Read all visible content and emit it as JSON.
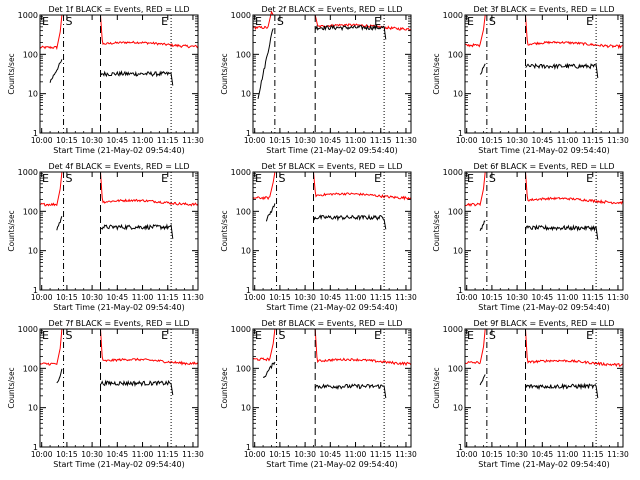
{
  "layout": "3x3 grid",
  "shared": {
    "xlabel": "Start Time (21-May-02 09:54:40)",
    "ylabel": "Counts/sec",
    "xtick_labels": [
      "10:00",
      "10:15",
      "10:30",
      "10:45",
      "11:00",
      "11:15",
      "11:30"
    ],
    "ytick_labels": [
      "1",
      "10",
      "100",
      "1000"
    ],
    "marker_labels": [
      "E",
      "S",
      "E"
    ],
    "colors": {
      "events": "#000000",
      "lld": "#ff0000",
      "axes": "#000000",
      "background": "#ffffff"
    },
    "series_names": [
      "BLACK = Events",
      "RED = LLD"
    ]
  },
  "chart_data": [
    {
      "type": "line",
      "title": "Det 1f BLACK = Events, RED = LLD",
      "y_scale": "log",
      "ylim": [
        1,
        1000
      ],
      "xlim": [
        "09:59",
        "11:33"
      ],
      "markers": {
        "E_start": "10:13",
        "S": "10:13",
        "gap_end": "10:35",
        "E_end": "11:17"
      },
      "series": [
        {
          "name": "Events",
          "color": "#000000",
          "pre": {
            "start": "10:05",
            "end": "10:12",
            "from": 20,
            "to": 70
          },
          "post": {
            "start": "10:35",
            "end": "11:18",
            "level": 32
          }
        },
        {
          "name": "LLD",
          "color": "#ff0000",
          "pre": {
            "start": "09:59",
            "end": "10:12",
            "level": 150
          },
          "post": {
            "start": "10:35",
            "end": "11:33",
            "level": 180
          }
        }
      ]
    },
    {
      "type": "line",
      "title": "Det 2f BLACK = Events, RED = LLD",
      "y_scale": "log",
      "ylim": [
        1,
        1000
      ],
      "xlim": [
        "09:59",
        "11:33"
      ],
      "markers": {
        "E_start": "10:12",
        "S": "10:12",
        "gap_end": "10:36",
        "E_end": "11:17"
      },
      "series": [
        {
          "name": "Events",
          "color": "#000000",
          "pre": {
            "start": "10:02",
            "end": "10:11",
            "from": 8,
            "to": 480
          },
          "post": {
            "start": "10:36",
            "end": "11:18",
            "level": 480
          }
        },
        {
          "name": "LLD",
          "color": "#ff0000",
          "pre": {
            "start": "09:59",
            "end": "10:11",
            "level": 480
          },
          "post": {
            "start": "10:36",
            "end": "11:33",
            "level": 500
          }
        }
      ]
    },
    {
      "type": "line",
      "title": "Det 3f BLACK = Events, RED = LLD",
      "y_scale": "log",
      "ylim": [
        1,
        1000
      ],
      "xlim": [
        "09:59",
        "11:33"
      ],
      "markers": {
        "E_start": "10:12",
        "S": "10:12",
        "gap_end": "10:35",
        "E_end": "11:17"
      },
      "series": [
        {
          "name": "Events",
          "color": "#000000",
          "pre": {
            "start": "10:08",
            "end": "10:11",
            "from": 30,
            "to": 55
          },
          "post": {
            "start": "10:35",
            "end": "11:18",
            "level": 50
          }
        },
        {
          "name": "LLD",
          "color": "#ff0000",
          "pre": {
            "start": "09:59",
            "end": "10:11",
            "level": 170
          },
          "post": {
            "start": "10:35",
            "end": "11:33",
            "level": 180
          }
        }
      ]
    },
    {
      "type": "line",
      "title": "Det 4f BLACK = Events, RED = LLD",
      "y_scale": "log",
      "ylim": [
        1,
        1000
      ],
      "xlim": [
        "09:59",
        "11:33"
      ],
      "markers": {
        "E_start": "10:13",
        "S": "10:13",
        "gap_end": "10:35",
        "E_end": "11:17"
      },
      "series": [
        {
          "name": "Events",
          "color": "#000000",
          "pre": {
            "start": "10:09",
            "end": "10:12",
            "from": 35,
            "to": 70
          },
          "post": {
            "start": "10:35",
            "end": "11:18",
            "level": 40
          }
        },
        {
          "name": "LLD",
          "color": "#ff0000",
          "pre": {
            "start": "09:59",
            "end": "10:12",
            "level": 150
          },
          "post": {
            "start": "10:35",
            "end": "11:33",
            "level": 170
          }
        }
      ]
    },
    {
      "type": "line",
      "title": "Det 5f BLACK = Events, RED = LLD",
      "y_scale": "log",
      "ylim": [
        1,
        1000
      ],
      "xlim": [
        "09:59",
        "11:33"
      ],
      "markers": {
        "E_start": "10:13",
        "S": "10:13",
        "gap_end": "10:35",
        "E_end": "11:17"
      },
      "series": [
        {
          "name": "Events",
          "color": "#000000",
          "pre": {
            "start": "10:07",
            "end": "10:12",
            "from": 60,
            "to": 150
          },
          "post": {
            "start": "10:35",
            "end": "11:18",
            "level": 70
          }
        },
        {
          "name": "LLD",
          "color": "#ff0000",
          "pre": {
            "start": "09:59",
            "end": "10:12",
            "level": 220
          },
          "post": {
            "start": "10:35",
            "end": "11:33",
            "level": 250
          }
        }
      ]
    },
    {
      "type": "line",
      "title": "Det 6f BLACK = Events, RED = LLD",
      "y_scale": "log",
      "ylim": [
        1,
        1000
      ],
      "xlim": [
        "09:59",
        "11:33"
      ],
      "markers": {
        "E_start": "10:12",
        "S": "10:12",
        "gap_end": "10:35",
        "E_end": "11:17"
      },
      "series": [
        {
          "name": "Events",
          "color": "#000000",
          "pre": {
            "start": "10:08",
            "end": "10:11",
            "from": 30,
            "to": 60
          },
          "post": {
            "start": "10:35",
            "end": "11:18",
            "level": 38
          }
        },
        {
          "name": "LLD",
          "color": "#ff0000",
          "pre": {
            "start": "09:59",
            "end": "10:11",
            "level": 150
          },
          "post": {
            "start": "10:35",
            "end": "11:33",
            "level": 190
          }
        }
      ]
    },
    {
      "type": "line",
      "title": "Det 7f BLACK = Events, RED = LLD",
      "y_scale": "log",
      "ylim": [
        1,
        1000
      ],
      "xlim": [
        "09:59",
        "11:33"
      ],
      "markers": {
        "E_start": "10:13",
        "S": "10:13",
        "gap_end": "10:35",
        "E_end": "11:17"
      },
      "series": [
        {
          "name": "Events",
          "color": "#000000",
          "pre": {
            "start": "10:09",
            "end": "10:12",
            "from": 40,
            "to": 90
          },
          "post": {
            "start": "10:35",
            "end": "11:18",
            "level": 42
          }
        },
        {
          "name": "LLD",
          "color": "#ff0000",
          "pre": {
            "start": "09:59",
            "end": "10:12",
            "level": 130
          },
          "post": {
            "start": "10:35",
            "end": "11:33",
            "level": 150
          }
        }
      ]
    },
    {
      "type": "line",
      "title": "Det 8f BLACK = Events, RED = LLD",
      "y_scale": "log",
      "ylim": [
        1,
        1000
      ],
      "xlim": [
        "09:59",
        "11:33"
      ],
      "markers": {
        "E_start": "10:13",
        "S": "10:13",
        "gap_end": "10:36",
        "E_end": "11:17"
      },
      "series": [
        {
          "name": "Events",
          "color": "#000000",
          "pre": {
            "start": "10:05",
            "end": "10:12",
            "from": 55,
            "to": 150
          },
          "post": {
            "start": "10:36",
            "end": "11:18",
            "level": 35
          }
        },
        {
          "name": "LLD",
          "color": "#ff0000",
          "pre": {
            "start": "09:59",
            "end": "10:12",
            "level": 170
          },
          "post": {
            "start": "10:36",
            "end": "11:33",
            "level": 150
          }
        }
      ]
    },
    {
      "type": "line",
      "title": "Det 9f BLACK = Events, RED = LLD",
      "y_scale": "log",
      "ylim": [
        1,
        1000
      ],
      "xlim": [
        "09:59",
        "11:33"
      ],
      "markers": {
        "E_start": "10:12",
        "S": "10:12",
        "gap_end": "10:35",
        "E_end": "11:17"
      },
      "series": [
        {
          "name": "Events",
          "color": "#000000",
          "pre": {
            "start": "10:08",
            "end": "10:11",
            "from": 35,
            "to": 70
          },
          "post": {
            "start": "10:35",
            "end": "11:18",
            "level": 35
          }
        },
        {
          "name": "LLD",
          "color": "#ff0000",
          "pre": {
            "start": "09:59",
            "end": "10:11",
            "level": 140
          },
          "post": {
            "start": "10:35",
            "end": "11:33",
            "level": 140
          }
        }
      ]
    }
  ]
}
